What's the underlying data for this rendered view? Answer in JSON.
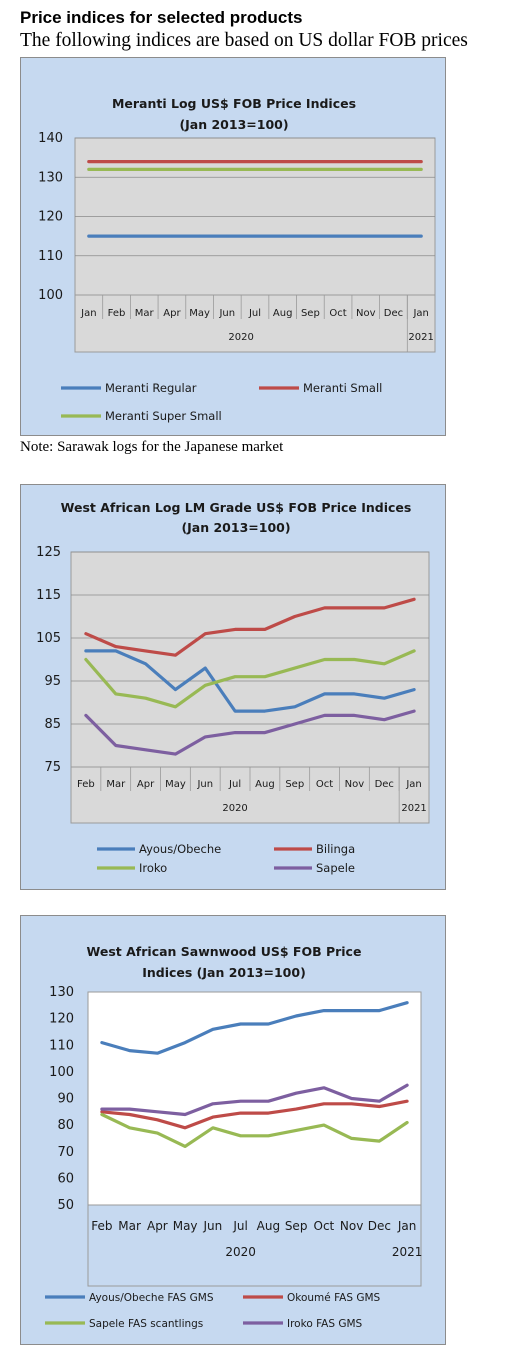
{
  "heading": "Price indices for selected products",
  "subheading": "The following indices are based on US dollar FOB prices",
  "note": "Note: Sarawak logs for the Japanese market",
  "chart_data": [
    {
      "type": "line",
      "title_lines": [
        "Meranti Log US$ FOB Price Indices",
        "(Jan 2013=100)"
      ],
      "categories": [
        "Jan",
        "Feb",
        "Mar",
        "Apr",
        "May",
        "Jun",
        "Jul",
        "Aug",
        "Sep",
        "Oct",
        "Nov",
        "Dec",
        "Jan"
      ],
      "year_labels": [
        "2020",
        "2021"
      ],
      "yticks": [
        100,
        110,
        120,
        130,
        140
      ],
      "ylim": [
        100,
        140
      ],
      "grid": true,
      "legend_position": "bottom",
      "series": [
        {
          "name": "Meranti Regular",
          "color": "#4a7ebb",
          "values": [
            115,
            115,
            115,
            115,
            115,
            115,
            115,
            115,
            115,
            115,
            115,
            115,
            115
          ]
        },
        {
          "name": "Meranti Small",
          "color": "#be4b48",
          "values": [
            134,
            134,
            134,
            134,
            134,
            134,
            134,
            134,
            134,
            134,
            134,
            134,
            134
          ]
        },
        {
          "name": "Meranti Super Small",
          "color": "#98b954",
          "values": [
            132,
            132,
            132,
            132,
            132,
            132,
            132,
            132,
            132,
            132,
            132,
            132,
            132
          ]
        }
      ]
    },
    {
      "type": "line",
      "title_lines": [
        "West African Log LM Grade US$ FOB Price Indices",
        "(Jan 2013=100)"
      ],
      "categories": [
        "Feb",
        "Mar",
        "Apr",
        "May",
        "Jun",
        "Jul",
        "Aug",
        "Sep",
        "Oct",
        "Nov",
        "Dec",
        "Jan"
      ],
      "year_labels": [
        "2020",
        "2021"
      ],
      "yticks": [
        75,
        85,
        95,
        105,
        115,
        125
      ],
      "ylim": [
        75,
        125
      ],
      "grid": true,
      "legend_position": "bottom",
      "series": [
        {
          "name": "Ayous/Obeche",
          "color": "#4a7ebb",
          "values": [
            102,
            102,
            99,
            93,
            98,
            88,
            88,
            89,
            92,
            92,
            91,
            93
          ]
        },
        {
          "name": "Bilinga",
          "color": "#be4b48",
          "values": [
            106,
            103,
            102,
            101,
            106,
            107,
            107,
            110,
            112,
            112,
            112,
            114
          ]
        },
        {
          "name": "Iroko",
          "color": "#98b954",
          "values": [
            100,
            92,
            91,
            89,
            94,
            96,
            96,
            98,
            100,
            100,
            99,
            102
          ]
        },
        {
          "name": "Sapele",
          "color": "#7d5fa0",
          "values": [
            87,
            80,
            79,
            78,
            82,
            83,
            83,
            85,
            87,
            87,
            86,
            88
          ]
        }
      ]
    },
    {
      "type": "line",
      "title_lines": [
        "West African Sawnwood US$ FOB Price",
        "Indices (Jan 2013=100)"
      ],
      "categories": [
        "Feb",
        "Mar",
        "Apr",
        "May",
        "Jun",
        "Jul",
        "Aug",
        "Sep",
        "Oct",
        "Nov",
        "Dec",
        "Jan"
      ],
      "year_labels": [
        "2020",
        "2021"
      ],
      "yticks": [
        50,
        60,
        70,
        80,
        90,
        100,
        110,
        120,
        130
      ],
      "ylim": [
        50,
        130
      ],
      "grid": false,
      "legend_position": "bottom",
      "series": [
        {
          "name": "Ayous/Obeche FAS GMS",
          "color": "#4a7ebb",
          "values": [
            111,
            108,
            107,
            111,
            116,
            118,
            118,
            121,
            123,
            123,
            123,
            126
          ]
        },
        {
          "name": "Okoumé FAS GMS",
          "color": "#be4b48",
          "values": [
            85,
            84,
            82,
            79,
            83,
            84.5,
            84.5,
            86,
            88,
            88,
            87,
            89
          ]
        },
        {
          "name": "Sapele FAS scantlings",
          "color": "#98b954",
          "values": [
            84,
            79,
            77,
            72,
            79,
            76,
            76,
            78,
            80,
            75,
            74,
            81
          ]
        },
        {
          "name": "Iroko FAS GMS",
          "color": "#7d5fa0",
          "values": [
            86,
            86,
            85,
            84,
            88,
            89,
            89,
            92,
            94,
            90,
            89,
            95
          ]
        }
      ]
    }
  ]
}
